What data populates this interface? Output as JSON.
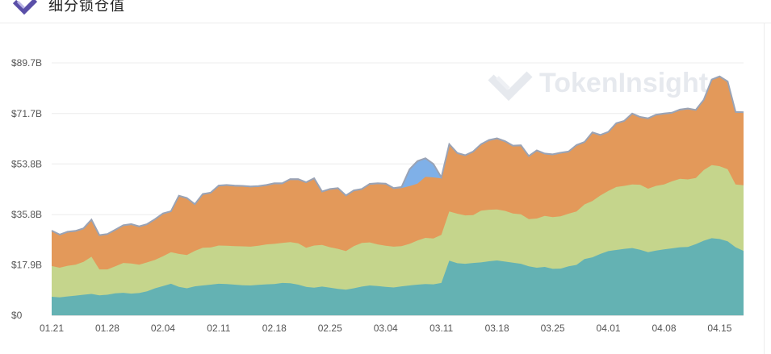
{
  "header": {
    "title": "细分锁仓值",
    "logo_icon": "tokeninsight-logo-icon"
  },
  "watermark": {
    "text": "TokenInsight",
    "icon": "tokeninsight-watermark-icon"
  },
  "chart_data": {
    "type": "area",
    "stacked": true,
    "title": "细分锁仓值",
    "xlabel": "",
    "ylabel": "",
    "x_tick_labels": [
      "01.21",
      "01.28",
      "02.04",
      "02.11",
      "02.18",
      "02.25",
      "03.04",
      "03.11",
      "03.18",
      "03.25",
      "04.01",
      "04.08",
      "04.15"
    ],
    "y_tick_labels": [
      "$0",
      "$17.9B",
      "$35.8B",
      "$53.8B",
      "$71.7B",
      "$89.7B"
    ],
    "y_ticks": [
      0,
      17.9,
      35.8,
      53.8,
      71.7,
      89.7
    ],
    "ylim": [
      0,
      89.7
    ],
    "x_start": "2021-01-21",
    "x_end": "2021-04-20",
    "grid": true,
    "legend": "none",
    "series": [
      {
        "color": "#64b2b3",
        "values": [
          6.6,
          6.4,
          6.7,
          7.0,
          7.3,
          7.6,
          7.1,
          7.3,
          7.8,
          8.0,
          7.7,
          7.9,
          8.5,
          9.6,
          10.4,
          11.2,
          10.1,
          9.6,
          10.3,
          10.6,
          10.9,
          11.2,
          11.1,
          10.9,
          10.7,
          10.6,
          10.8,
          11.0,
          11.1,
          11.5,
          11.4,
          10.9,
          10.1,
          9.8,
          10.2,
          9.8,
          9.4,
          9.1,
          9.6,
          10.2,
          10.6,
          10.4,
          10.1,
          9.9,
          10.3,
          10.6,
          10.9,
          11.1,
          11.0,
          11.5,
          19.4,
          18.5,
          18.3,
          18.6,
          18.8,
          19.2,
          19.5,
          19.1,
          18.7,
          18.3,
          17.4,
          16.9,
          17.2,
          16.5,
          16.6,
          17.4,
          17.9,
          20.0,
          20.6,
          21.8,
          22.8,
          23.2,
          23.6,
          23.9,
          23.3,
          22.4,
          23.0,
          23.4,
          23.8,
          24.2,
          24.3,
          25.3,
          26.5,
          27.4,
          27.1,
          26.3,
          24.2,
          22.9
        ],
        "tops": [
          17.5,
          16.9,
          17.6,
          18.0,
          19.0,
          20.8,
          16.3,
          16.3,
          17.4,
          18.6,
          18.4,
          18.0,
          18.8,
          19.7,
          21.0,
          22.4,
          21.8,
          21.4,
          22.9,
          24.0,
          24.1,
          24.8,
          24.7,
          24.6,
          24.5,
          24.4,
          24.7,
          25.2,
          25.4,
          25.7,
          26.0,
          25.6,
          24.0,
          24.8,
          25.0,
          24.2,
          23.6,
          22.8,
          24.6,
          25.7,
          25.9,
          25.2,
          24.7,
          24.4,
          24.6,
          25.4,
          26.6,
          27.5,
          27.3,
          28.6,
          36.9,
          36.1,
          35.5,
          35.6,
          37.2,
          37.5,
          37.6,
          37.1,
          36.2,
          35.9,
          34.2,
          34.4,
          35.3,
          34.9,
          35.2,
          36.1,
          36.9,
          39.4,
          40.6,
          42.6,
          44.2,
          45.6,
          46.0,
          46.5,
          46.4,
          45.0,
          46.0,
          46.5,
          47.6,
          48.5,
          48.3,
          48.8,
          51.6,
          53.4,
          53.0,
          51.9,
          46.5,
          46.2
        ]
      },
      {
        "color": "#c5d58c",
        "values": [
          10.9,
          10.5,
          10.9,
          11.0,
          11.7,
          13.2,
          9.2,
          9.0,
          9.6,
          10.6,
          10.7,
          10.1,
          10.3,
          10.1,
          10.6,
          11.2,
          11.7,
          11.8,
          12.6,
          13.4,
          13.2,
          13.6,
          13.6,
          13.7,
          13.8,
          13.8,
          13.9,
          14.2,
          14.3,
          14.2,
          14.6,
          14.7,
          13.9,
          15.0,
          14.8,
          14.4,
          14.2,
          13.7,
          15.0,
          15.5,
          15.3,
          14.8,
          14.6,
          14.5,
          14.3,
          14.8,
          15.7,
          16.4,
          16.3,
          17.1,
          17.5,
          17.6,
          17.2,
          17.0,
          18.4,
          18.3,
          18.1,
          18.0,
          17.5,
          17.6,
          16.8,
          17.5,
          18.1,
          18.4,
          18.6,
          18.7,
          19.0,
          19.4,
          20.0,
          20.8,
          21.4,
          22.4,
          22.4,
          22.6,
          23.1,
          22.6,
          23.0,
          23.1,
          23.8,
          24.3,
          24.0,
          23.5,
          25.1,
          26.0,
          25.9,
          25.6,
          22.3,
          23.3
        ]
      },
      {
        "color": "#e3995a",
        "values": [
          12.3,
          11.5,
          11.8,
          11.7,
          11.6,
          12.9,
          11.9,
          12.3,
          12.7,
          13.1,
          13.7,
          13.3,
          13.3,
          14.2,
          14.9,
          14.3,
          20.4,
          20.0,
          16.3,
          18.8,
          19.2,
          21.0,
          21.3,
          21.2,
          21.2,
          21.1,
          20.9,
          20.8,
          21.2,
          20.9,
          22.1,
          22.5,
          23.0,
          23.6,
          18.7,
          20.4,
          21.3,
          19.5,
          19.5,
          18.9,
          20.5,
          21.4,
          21.8,
          20.5,
          20.6,
          20.5,
          20.2,
          21.7,
          21.7,
          20.1,
          23.6,
          21.3,
          21.1,
          22.3,
          23.3,
          24.5,
          25.0,
          24.5,
          23.8,
          24.2,
          22.1,
          23.9,
          21.9,
          22.0,
          22.3,
          21.8,
          23.3,
          21.9,
          24.1,
          21.2,
          20.7,
          22.4,
          22.8,
          24.9,
          23.8,
          24.7,
          25.0,
          24.9,
          24.1,
          24.3,
          24.9,
          23.9,
          24.7,
          30.1,
          31.6,
          30.9,
          25.5,
          25.7
        ],
        "top_total": [
          29.8,
          28.4,
          29.4,
          29.7,
          30.6,
          33.7,
          28.2,
          28.6,
          30.1,
          31.7,
          32.1,
          31.3,
          32.1,
          33.9,
          35.9,
          36.7,
          42.2,
          41.4,
          39.2,
          42.8,
          43.3,
          45.8,
          46.0,
          45.8,
          45.7,
          45.5,
          45.6,
          46.0,
          46.6,
          46.6,
          48.1,
          48.1,
          47.0,
          48.4,
          43.7,
          44.6,
          44.9,
          42.3,
          44.1,
          44.6,
          46.4,
          46.6,
          46.5,
          44.9,
          45.2,
          45.9,
          46.8,
          49.2,
          49.0,
          48.7,
          60.5,
          57.4,
          56.6,
          57.9,
          60.5,
          62.0,
          62.6,
          61.6,
          60.0,
          60.1,
          56.3,
          58.3,
          57.2,
          56.9,
          57.5,
          57.9,
          60.2,
          61.3,
          64.7,
          63.8,
          64.9,
          68.0,
          68.8,
          71.4,
          70.2,
          69.7,
          71.0,
          71.4,
          71.7,
          72.8,
          73.2,
          72.7,
          76.3,
          83.5,
          84.6,
          82.8,
          72.0,
          71.9
        ]
      },
      {
        "color": "#7fb0e8",
        "note_values": "small series visible mainly between 03.07 and 03.11",
        "values": [
          0.3,
          0.3,
          0.3,
          0.3,
          0.3,
          0.3,
          0.3,
          0.3,
          0.3,
          0.3,
          0.3,
          0.3,
          0.3,
          0.3,
          0.3,
          0.3,
          0.3,
          0.3,
          0.3,
          0.3,
          0.3,
          0.3,
          0.3,
          0.3,
          0.3,
          0.3,
          0.3,
          0.3,
          0.3,
          0.3,
          0.3,
          0.3,
          0.3,
          0.3,
          0.3,
          0.3,
          0.3,
          0.3,
          0.3,
          0.3,
          0.3,
          0.3,
          0.3,
          0.3,
          0.4,
          6.0,
          8.0,
          6.6,
          4.8,
          0.3,
          0.3,
          0.3,
          0.3,
          0.3,
          0.3,
          0.3,
          0.3,
          0.3,
          0.3,
          0.3,
          0.3,
          0.3,
          0.3,
          0.3,
          0.3,
          0.3,
          0.3,
          0.3,
          0.3,
          0.3,
          0.3,
          0.3,
          0.3,
          0.3,
          0.3,
          0.3,
          0.3,
          0.3,
          0.3,
          0.3,
          0.3,
          0.3,
          0.3,
          0.3,
          0.3,
          0.3,
          0.3,
          0.3
        ]
      }
    ]
  }
}
